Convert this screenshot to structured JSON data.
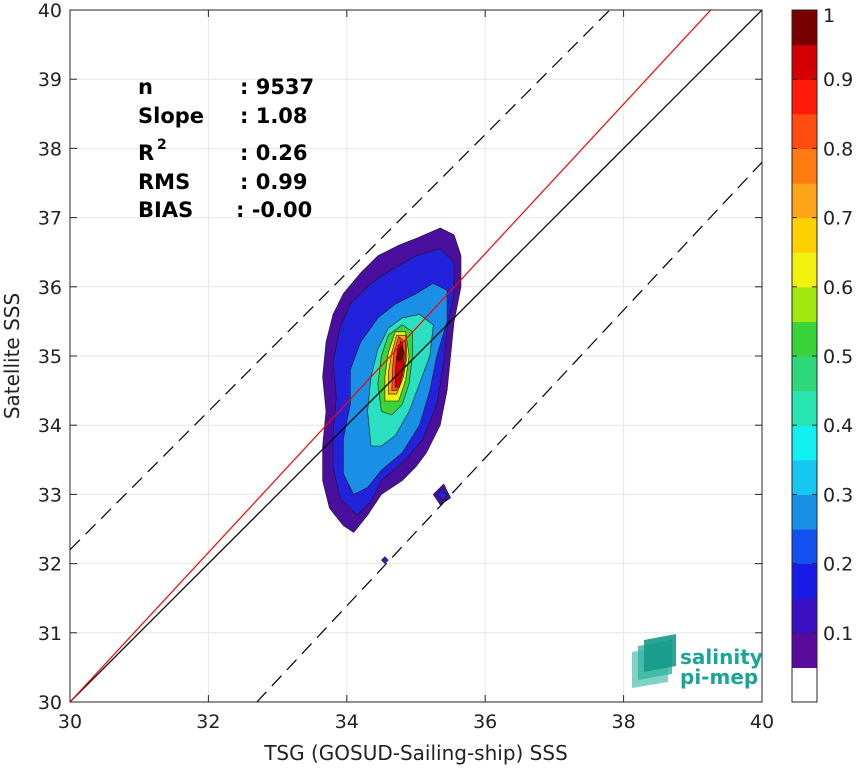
{
  "chart_data": {
    "type": "heatmap",
    "title": "",
    "xlabel": "TSG (GOSUD-Sailing-ship) SSS",
    "ylabel": "Satellite SSS",
    "xlim": [
      30,
      40
    ],
    "ylim": [
      30,
      40
    ],
    "x_ticks": [
      "30",
      "32",
      "34",
      "36",
      "38",
      "40"
    ],
    "y_ticks": [
      "30",
      "31",
      "32",
      "33",
      "34",
      "35",
      "36",
      "37",
      "38",
      "39",
      "40"
    ],
    "grid": true,
    "stats": [
      {
        "label": "n",
        "value": ": 9537"
      },
      {
        "label": "Slope",
        "value": ": 1.08"
      },
      {
        "label": "R",
        "sup": "2",
        "value": ": 0.26"
      },
      {
        "label": "RMS",
        "value": ": 0.99"
      },
      {
        "label": "BIAS",
        "value": ": -0.00"
      }
    ],
    "lines": [
      {
        "kind": "one-to-one",
        "color": "#000000",
        "dash": "solid",
        "points": [
          [
            30,
            30
          ],
          [
            40,
            40
          ]
        ]
      },
      {
        "kind": "regression",
        "color": "#ff0000",
        "dash": "solid",
        "points": [
          [
            30,
            30
          ],
          [
            40,
            40.8
          ]
        ]
      },
      {
        "kind": "upper-bound",
        "color": "#000000",
        "dash": "dashed",
        "points": [
          [
            30,
            32.2
          ],
          [
            37.8,
            40
          ]
        ]
      },
      {
        "kind": "lower-bound",
        "color": "#000000",
        "dash": "dashed",
        "points": [
          [
            32.7,
            30
          ],
          [
            40,
            37.8
          ]
        ]
      }
    ],
    "density_levels": [
      {
        "level": 0.05,
        "color": "#4b0fa0",
        "polygon": [
          [
            34.1,
            32.45
          ],
          [
            33.95,
            32.55
          ],
          [
            33.75,
            32.8
          ],
          [
            33.65,
            33.2
          ],
          [
            33.65,
            33.7
          ],
          [
            33.7,
            34.2
          ],
          [
            33.65,
            34.7
          ],
          [
            33.7,
            35.2
          ],
          [
            33.8,
            35.6
          ],
          [
            33.95,
            35.9
          ],
          [
            34.2,
            36.2
          ],
          [
            34.45,
            36.45
          ],
          [
            34.75,
            36.6
          ],
          [
            35.05,
            36.72
          ],
          [
            35.35,
            36.85
          ],
          [
            35.55,
            36.75
          ],
          [
            35.65,
            36.45
          ],
          [
            35.65,
            36.0
          ],
          [
            35.55,
            35.5
          ],
          [
            35.5,
            35.0
          ],
          [
            35.45,
            34.5
          ],
          [
            35.35,
            34.0
          ],
          [
            35.15,
            33.6
          ],
          [
            35.0,
            33.4
          ],
          [
            34.8,
            33.2
          ],
          [
            34.5,
            33.0
          ],
          [
            34.3,
            32.7
          ]
        ]
      },
      {
        "level": 0.15,
        "color": "#2222dd",
        "polygon": [
          [
            34.15,
            32.7
          ],
          [
            33.9,
            32.95
          ],
          [
            33.8,
            33.4
          ],
          [
            33.8,
            33.9
          ],
          [
            33.85,
            34.4
          ],
          [
            33.8,
            34.9
          ],
          [
            33.9,
            35.4
          ],
          [
            34.05,
            35.75
          ],
          [
            34.35,
            36.05
          ],
          [
            34.65,
            36.25
          ],
          [
            35.0,
            36.45
          ],
          [
            35.35,
            36.55
          ],
          [
            35.55,
            36.35
          ],
          [
            35.55,
            35.9
          ],
          [
            35.45,
            35.4
          ],
          [
            35.4,
            34.9
          ],
          [
            35.3,
            34.3
          ],
          [
            35.1,
            33.8
          ],
          [
            34.85,
            33.5
          ],
          [
            34.5,
            33.2
          ],
          [
            34.35,
            32.9
          ]
        ]
      },
      {
        "level": 0.25,
        "color": "#1a8fe6",
        "polygon": [
          [
            34.1,
            33.0
          ],
          [
            33.95,
            33.3
          ],
          [
            33.95,
            33.8
          ],
          [
            34.05,
            34.3
          ],
          [
            34.05,
            34.8
          ],
          [
            34.2,
            35.2
          ],
          [
            34.45,
            35.55
          ],
          [
            34.7,
            35.75
          ],
          [
            35.0,
            35.9
          ],
          [
            35.25,
            36.05
          ],
          [
            35.45,
            35.95
          ],
          [
            35.45,
            35.5
          ],
          [
            35.3,
            35.0
          ],
          [
            35.2,
            34.5
          ],
          [
            35.05,
            34.0
          ],
          [
            34.8,
            33.6
          ],
          [
            34.5,
            33.35
          ],
          [
            34.3,
            33.1
          ]
        ]
      },
      {
        "level": 0.35,
        "color": "#2ae0c0",
        "polygon": [
          [
            34.35,
            33.7
          ],
          [
            34.3,
            34.2
          ],
          [
            34.35,
            34.7
          ],
          [
            34.45,
            35.1
          ],
          [
            34.6,
            35.4
          ],
          [
            34.8,
            35.55
          ],
          [
            35.05,
            35.6
          ],
          [
            35.25,
            35.45
          ],
          [
            35.2,
            35.0
          ],
          [
            35.05,
            34.6
          ],
          [
            34.9,
            34.2
          ],
          [
            34.7,
            33.85
          ],
          [
            34.5,
            33.7
          ]
        ]
      },
      {
        "level": 0.5,
        "color": "#3ad43a",
        "polygon": [
          [
            34.5,
            34.2
          ],
          [
            34.45,
            34.6
          ],
          [
            34.5,
            35.0
          ],
          [
            34.6,
            35.3
          ],
          [
            34.8,
            35.45
          ],
          [
            34.95,
            35.35
          ],
          [
            34.95,
            35.0
          ],
          [
            34.9,
            34.6
          ],
          [
            34.8,
            34.3
          ],
          [
            34.65,
            34.15
          ]
        ]
      },
      {
        "level": 0.6,
        "color": "#f2f20e",
        "polygon": [
          [
            34.55,
            34.35
          ],
          [
            34.55,
            34.7
          ],
          [
            34.6,
            35.05
          ],
          [
            34.7,
            35.35
          ],
          [
            34.85,
            35.35
          ],
          [
            34.9,
            35.0
          ],
          [
            34.85,
            34.65
          ],
          [
            34.75,
            34.35
          ]
        ]
      },
      {
        "level": 0.7,
        "color": "#ffa51a",
        "polygon": [
          [
            34.6,
            34.45
          ],
          [
            34.6,
            34.75
          ],
          [
            34.65,
            35.05
          ],
          [
            34.72,
            35.3
          ],
          [
            34.85,
            35.3
          ],
          [
            34.87,
            35.0
          ],
          [
            34.82,
            34.7
          ],
          [
            34.72,
            34.45
          ]
        ]
      },
      {
        "level": 0.8,
        "color": "#ff4d12",
        "polygon": [
          [
            34.65,
            34.5
          ],
          [
            34.66,
            34.8
          ],
          [
            34.68,
            35.05
          ],
          [
            34.75,
            35.28
          ],
          [
            34.85,
            35.2
          ],
          [
            34.85,
            34.95
          ],
          [
            34.8,
            34.7
          ],
          [
            34.72,
            34.5
          ]
        ]
      },
      {
        "level": 0.9,
        "color": "#d20000",
        "polygon": [
          [
            34.7,
            34.55
          ],
          [
            34.7,
            34.75
          ],
          [
            34.72,
            35.0
          ],
          [
            34.78,
            35.22
          ],
          [
            34.83,
            35.05
          ],
          [
            34.82,
            34.8
          ],
          [
            34.76,
            34.55
          ]
        ]
      },
      {
        "level": 0.95,
        "color": "#7a0000",
        "polygon": [
          [
            34.72,
            34.95
          ],
          [
            34.74,
            35.15
          ],
          [
            34.8,
            35.2
          ],
          [
            34.82,
            35.02
          ],
          [
            34.78,
            34.92
          ]
        ]
      }
    ],
    "islands": [
      {
        "color": "#4b0fa0",
        "polygon": [
          [
            35.25,
            33.0
          ],
          [
            35.35,
            32.85
          ],
          [
            35.5,
            32.95
          ],
          [
            35.4,
            33.15
          ]
        ]
      },
      {
        "color": "#2222dd",
        "polygon": [
          [
            35.3,
            33.0
          ],
          [
            35.38,
            32.92
          ],
          [
            35.45,
            32.98
          ],
          [
            35.38,
            33.08
          ]
        ]
      },
      {
        "color": "#2222dd",
        "polygon": [
          [
            34.5,
            32.05
          ],
          [
            34.55,
            32.0
          ],
          [
            34.6,
            32.05
          ],
          [
            34.55,
            32.1
          ]
        ]
      }
    ],
    "colorbar": {
      "min": 0,
      "max": 1,
      "ticks": [
        "0.1",
        "0.2",
        "0.3",
        "0.4",
        "0.5",
        "0.6",
        "0.7",
        "0.8",
        "0.9",
        "1"
      ],
      "colors": [
        "#ffffff",
        "#5a0b9b",
        "#3a10c2",
        "#1a1ae6",
        "#1250f0",
        "#1a8fe6",
        "#15c7f0",
        "#11f0f0",
        "#28e4b0",
        "#2ed87a",
        "#3ad43a",
        "#a2e80e",
        "#f2f20e",
        "#ffd000",
        "#ffa51a",
        "#ff7a10",
        "#ff4d12",
        "#ff1a0a",
        "#d20000",
        "#7a0000"
      ]
    }
  },
  "logo": {
    "line1": "salinity",
    "line2": "pi-mep",
    "color": "#1aa596"
  }
}
